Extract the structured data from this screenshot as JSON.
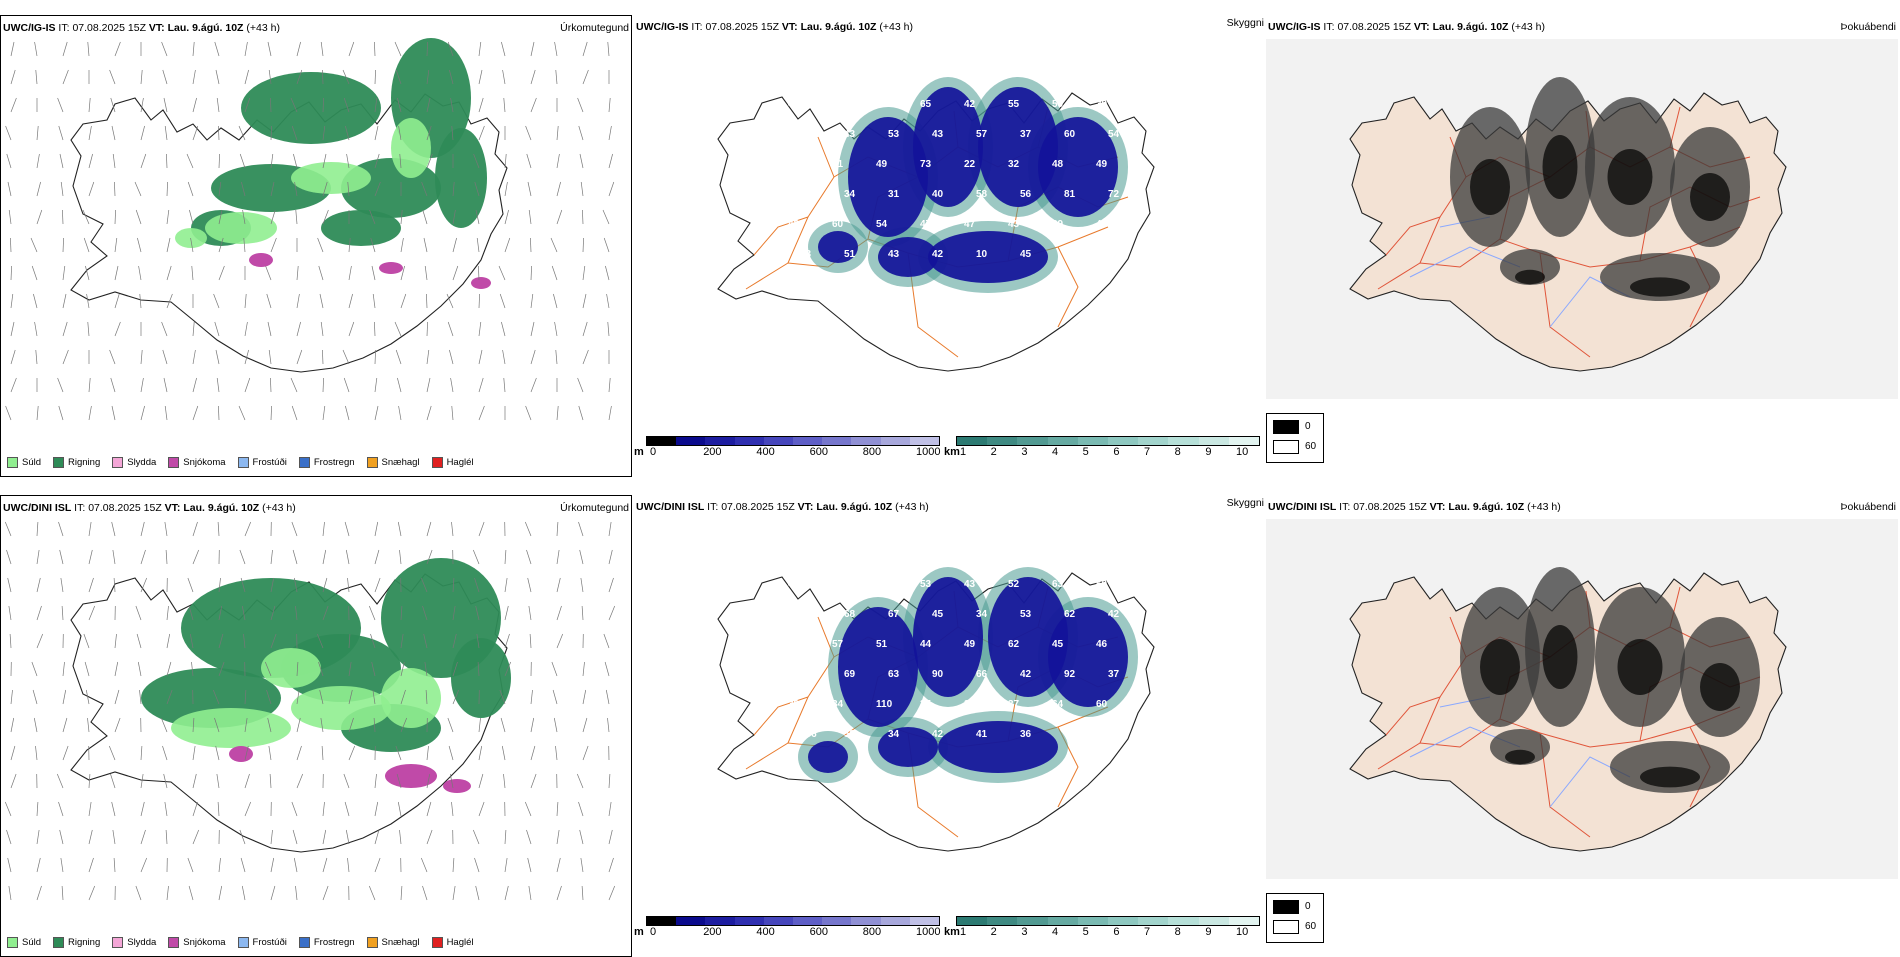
{
  "rows": [
    {
      "precip": {
        "model": "UWC/IG-IS",
        "it_label": "IT:",
        "it": "07.08.2025 15Z",
        "vt_label": "VT:",
        "vt": "Lau. 9.ágú. 10Z",
        "lead": "(+43 h)",
        "title": "Úrkomutegund"
      },
      "cloud": {
        "model": "UWC/IG-IS",
        "it_label": "IT:",
        "it": "07.08.2025 15Z",
        "vt_label": "VT:",
        "vt": "Lau. 9.ágú. 10Z",
        "lead": "(+43 h)",
        "title": "Skyggni"
      },
      "fog": {
        "model": "UWC/IG-IS",
        "it_label": "IT:",
        "it": "07.08.2025 15Z",
        "vt_label": "VT:",
        "vt": "Lau. 9.ágú. 10Z",
        "lead": "(+43 h)",
        "title": "Þokuábendi"
      },
      "labels": [
        "40",
        "43",
        "41",
        "65",
        "42",
        "55",
        "59",
        "39",
        "96",
        "43",
        "53",
        "43",
        "57",
        "37",
        "60",
        "54",
        "59",
        "41",
        "49",
        "73",
        "22",
        "32",
        "48",
        "49",
        "59",
        "34",
        "31",
        "40",
        "58",
        "56",
        "81",
        "72",
        "42",
        "60",
        "54",
        "47",
        "47",
        "43",
        "39",
        "44",
        "63",
        "51",
        "43",
        "42",
        "10",
        "45",
        "80",
        "64"
      ]
    },
    {
      "precip": {
        "model": "UWC/DINI ISL",
        "it_label": "IT:",
        "it": "07.08.2025 15Z",
        "vt_label": "VT:",
        "vt": "Lau. 9.ágú. 10Z",
        "lead": "(+43 h)",
        "title": "Úrkomutegund"
      },
      "cloud": {
        "model": "UWC/DINI ISL",
        "it_label": "IT:",
        "it": "07.08.2025 15Z",
        "vt_label": "VT:",
        "vt": "Lau. 9.ágú. 10Z",
        "lead": "(+43 h)",
        "title": "Skyggni"
      },
      "fog": {
        "model": "UWC/DINI ISL",
        "it_label": "IT:",
        "it": "07.08.2025 15Z",
        "vt_label": "VT:",
        "vt": "Lau. 9.ágú. 10Z",
        "lead": "(+43 h)",
        "title": "Þokuábendi"
      },
      "labels": [
        "46",
        "42",
        "44",
        "53",
        "43",
        "52",
        "63",
        "50",
        "54",
        "68",
        "67",
        "45",
        "34",
        "53",
        "62",
        "42",
        "36",
        "57",
        "51",
        "44",
        "49",
        "62",
        "45",
        "46",
        "43",
        "69",
        "63",
        "90",
        "66",
        "42",
        "92",
        "37",
        "39",
        "34",
        "110",
        "35",
        "36",
        "37",
        "64",
        "60",
        "186",
        "59",
        "34",
        "42",
        "41",
        "36",
        "59",
        "49"
      ]
    }
  ],
  "precip_legend": [
    {
      "label": "Súld",
      "color": "#90ee90"
    },
    {
      "label": "Rigning",
      "color": "#2e8b57"
    },
    {
      "label": "Slydda",
      "color": "#f4a6d7"
    },
    {
      "label": "Snjókoma",
      "color": "#c04aa8"
    },
    {
      "label": "Frostúði",
      "color": "#8cb8f0"
    },
    {
      "label": "Frostregn",
      "color": "#3a6fc8"
    },
    {
      "label": "Snæhagl",
      "color": "#f0a020"
    },
    {
      "label": "Haglél",
      "color": "#e02020"
    }
  ],
  "cloud_base_bar": {
    "unit": "m",
    "ticks": [
      "0",
      "200",
      "400",
      "600",
      "800",
      "1000"
    ],
    "colors": [
      "#000000",
      "#0a0a8c",
      "#1c1ca0",
      "#2f2fb0",
      "#4646bc",
      "#5e5ec6",
      "#7676cc",
      "#9090d4",
      "#a8a8dc",
      "#c0c0e6"
    ]
  },
  "visibility_bar": {
    "unit": "km",
    "ticks": [
      "1",
      "2",
      "3",
      "4",
      "5",
      "6",
      "7",
      "8",
      "9",
      "10"
    ],
    "colors": [
      "#2c7a72",
      "#3f8a82",
      "#529a92",
      "#66aaa2",
      "#7abab2",
      "#8ec8c0",
      "#a2d4cc",
      "#b6e0d8",
      "#cae8e2",
      "#e2f4f0"
    ]
  },
  "fog_legend": [
    {
      "label": "0",
      "color": "#000000"
    },
    {
      "label": "60",
      "color": "#ffffff"
    }
  ],
  "colors": {
    "coast": "#222222",
    "roads": "#e87a2c",
    "land_fog": "#f3e2d4",
    "rivers": "#8aa8ff",
    "rain": "#2e8b57",
    "drizzle": "#90ee90"
  }
}
